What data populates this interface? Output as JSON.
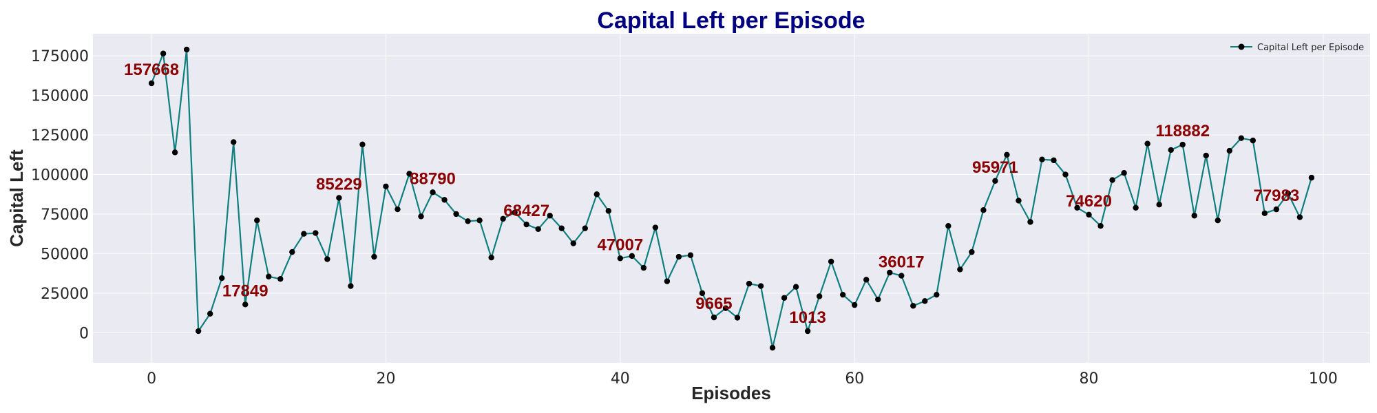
{
  "chart_data": {
    "type": "line",
    "title": "Capital Left per Episode",
    "xlabel": "Episodes",
    "ylabel": "Capital Left",
    "xlim": [
      -5,
      104
    ],
    "ylim": [
      -19000,
      189000
    ],
    "xticks": [
      0,
      20,
      40,
      60,
      80,
      100
    ],
    "yticks": [
      0,
      25000,
      50000,
      75000,
      100000,
      125000,
      150000,
      175000
    ],
    "grid": true,
    "legend_position": "top-right",
    "series": [
      {
        "name": "Capital Left per Episode",
        "x": [
          0,
          1,
          2,
          3,
          4,
          5,
          6,
          7,
          8,
          9,
          10,
          11,
          12,
          13,
          14,
          15,
          16,
          17,
          18,
          19,
          20,
          21,
          22,
          23,
          24,
          25,
          26,
          27,
          28,
          29,
          30,
          31,
          32,
          33,
          34,
          35,
          36,
          37,
          38,
          39,
          40,
          41,
          42,
          43,
          44,
          45,
          46,
          47,
          48,
          49,
          50,
          51,
          52,
          53,
          54,
          55,
          56,
          57,
          58,
          59,
          60,
          61,
          62,
          63,
          64,
          65,
          66,
          67,
          68,
          69,
          70,
          71,
          72,
          73,
          74,
          75,
          76,
          77,
          78,
          79,
          80,
          81,
          82,
          83,
          84,
          85,
          86,
          87,
          88,
          89,
          90,
          91,
          92,
          93,
          94,
          95,
          96,
          97,
          98,
          99
        ],
        "values": [
          157668,
          176500,
          114000,
          179000,
          1000,
          12000,
          34500,
          120500,
          17849,
          71000,
          35500,
          34000,
          51000,
          62500,
          63000,
          46500,
          85229,
          29500,
          119000,
          48000,
          92500,
          78000,
          100500,
          73500,
          88790,
          84000,
          75000,
          70500,
          71000,
          47500,
          72000,
          76000,
          68427,
          65500,
          74000,
          66000,
          56500,
          66000,
          87500,
          77000,
          47007,
          48500,
          41000,
          66500,
          32500,
          48000,
          49000,
          25000,
          9665,
          15500,
          9500,
          31000,
          29500,
          -9500,
          22000,
          29000,
          1013,
          23000,
          45000,
          24000,
          17500,
          33500,
          21000,
          38000,
          36017,
          17000,
          20000,
          24000,
          67500,
          40000,
          51000,
          77500,
          95971,
          112500,
          83500,
          70000,
          109500,
          109000,
          100000,
          79000,
          74620,
          67500,
          96500,
          101000,
          79000,
          119500,
          81000,
          115500,
          118882,
          74000,
          112000,
          71000,
          115000,
          123000,
          121500,
          75500,
          77983,
          88000,
          73000,
          98000
        ]
      }
    ],
    "annotations": [
      {
        "x": 0,
        "y": 157668,
        "label": "157668"
      },
      {
        "x": 8,
        "y": 17849,
        "label": "17849"
      },
      {
        "x": 16,
        "y": 85229,
        "label": "85229"
      },
      {
        "x": 24,
        "y": 88790,
        "label": "88790"
      },
      {
        "x": 32,
        "y": 68427,
        "label": "68427"
      },
      {
        "x": 40,
        "y": 47007,
        "label": "47007"
      },
      {
        "x": 48,
        "y": 9665,
        "label": "9665"
      },
      {
        "x": 56,
        "y": 1013,
        "label": "1013"
      },
      {
        "x": 64,
        "y": 36017,
        "label": "36017"
      },
      {
        "x": 72,
        "y": 95971,
        "label": "95971"
      },
      {
        "x": 80,
        "y": 74620,
        "label": "74620"
      },
      {
        "x": 88,
        "y": 118882,
        "label": "118882"
      },
      {
        "x": 96,
        "y": 77983,
        "label": "77983"
      }
    ],
    "colors": {
      "line": "#0e7f7f",
      "marker": "#000000",
      "annotation": "#8b0000",
      "title": "#000080",
      "plot_background": "#eaeaf2"
    }
  }
}
